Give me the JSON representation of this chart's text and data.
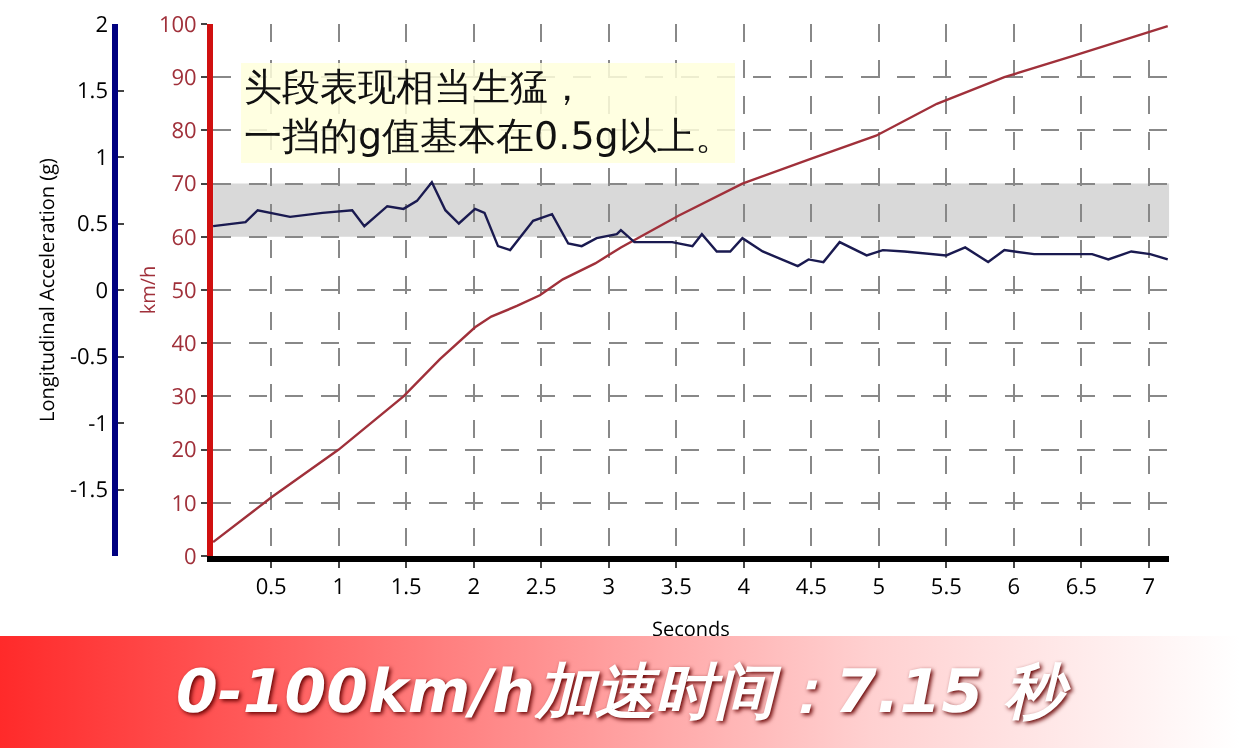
{
  "chart_data": {
    "type": "line",
    "title": "0-100km/h加速时间：7.15 秒",
    "xlabel": "Seconds",
    "ylabel": "km/h",
    "y2label": "Longitudinal Acceleration (g)",
    "annotations": [
      "头段表现相当生猛，一挡的g值基本在0.5g以上。"
    ],
    "xlim": [
      0.07,
      7.15
    ],
    "xticks": [
      0.5,
      1,
      1.5,
      2,
      2.5,
      3,
      3.5,
      4,
      4.5,
      5,
      5.5,
      6,
      6.5,
      7
    ],
    "ylim": [
      0,
      100
    ],
    "yticks": [
      0,
      10,
      20,
      30,
      40,
      50,
      60,
      70,
      80,
      90,
      100
    ],
    "y2lim": [
      -2,
      2
    ],
    "y2ticks": [
      -1.5,
      -1,
      -0.5,
      0,
      0.5,
      1,
      1.5,
      2
    ],
    "grid": true,
    "marker": "none",
    "line_style": "solid",
    "bands": [
      {
        "axis": "y",
        "from": 60,
        "to": 70,
        "color": "#d0d0d0"
      }
    ],
    "series": [
      {
        "color": "#a0303a",
        "x": [
          0.07,
          0.5,
          1.0,
          1.48,
          1.75,
          2.01,
          2.13,
          2.32,
          2.49,
          2.66,
          2.9,
          3.09,
          3.52,
          3.99,
          4.48,
          4.98,
          5.43,
          5.93,
          6.44,
          7.14
        ],
        "values": [
          2.6,
          11,
          20,
          30,
          37,
          43,
          45,
          47,
          49,
          52,
          55,
          58,
          64,
          70,
          74.5,
          79,
          85,
          90,
          94,
          99.6
        ]
      },
      {
        "color": "#1a1a50",
        "axis": "y2",
        "x": [
          0.07,
          0.31,
          0.4,
          0.64,
          0.88,
          1.1,
          1.19,
          1.36,
          1.48,
          1.58,
          1.69,
          1.79,
          1.89,
          2.01,
          2.08,
          2.18,
          2.27,
          2.44,
          2.58,
          2.7,
          2.8,
          2.91,
          3.06,
          3.09,
          3.19,
          3.47,
          3.62,
          3.69,
          3.8,
          3.9,
          3.99,
          4.14,
          4.4,
          4.48,
          4.59,
          4.71,
          4.91,
          5.03,
          5.19,
          5.5,
          5.64,
          5.81,
          5.93,
          6.15,
          6.58,
          6.7,
          6.87,
          7.01,
          7.14
        ],
        "values": [
          0.48,
          0.51,
          0.6,
          0.55,
          0.58,
          0.6,
          0.48,
          0.63,
          0.61,
          0.67,
          0.81,
          0.6,
          0.5,
          0.61,
          0.58,
          0.33,
          0.3,
          0.52,
          0.57,
          0.35,
          0.33,
          0.39,
          0.42,
          0.45,
          0.36,
          0.36,
          0.33,
          0.42,
          0.29,
          0.29,
          0.39,
          0.29,
          0.18,
          0.23,
          0.21,
          0.36,
          0.26,
          0.3,
          0.29,
          0.26,
          0.32,
          0.21,
          0.3,
          0.27,
          0.27,
          0.23,
          0.29,
          0.27,
          0.23
        ]
      }
    ]
  }
}
